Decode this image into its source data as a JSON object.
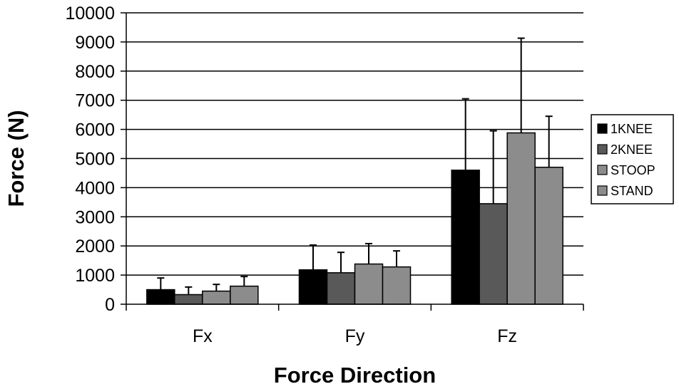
{
  "chart_data": {
    "type": "bar",
    "title": "",
    "xlabel": "Force Direction",
    "ylabel": "Force (N)",
    "ylim": [
      0,
      10000
    ],
    "yticks": [
      0,
      1000,
      2000,
      3000,
      4000,
      5000,
      6000,
      7000,
      8000,
      9000,
      10000
    ],
    "ytick_labels": [
      "0",
      "1000",
      "2000",
      "3000",
      "4000",
      "5000",
      "6000",
      "7000",
      "8000",
      "9000",
      "10000"
    ],
    "categories": [
      "Fx",
      "Fy",
      "Fz"
    ],
    "series": [
      {
        "name": "1KNEE",
        "color": "#000000",
        "values": [
          500,
          1180,
          4600
        ],
        "error": [
          400,
          850,
          2450
        ]
      },
      {
        "name": "2KNEE",
        "color": "#595959",
        "values": [
          330,
          1080,
          3450
        ],
        "error": [
          260,
          700,
          2500
        ]
      },
      {
        "name": "STOOP",
        "color": "#8c8c8c",
        "values": [
          450,
          1380,
          5880
        ],
        "error": [
          230,
          700,
          3250
        ]
      },
      {
        "name": "STAND",
        "color": "#8c8c8c",
        "values": [
          620,
          1280,
          4700
        ],
        "error": [
          330,
          550,
          1750
        ]
      }
    ],
    "grid": true,
    "legend_position": "right"
  }
}
